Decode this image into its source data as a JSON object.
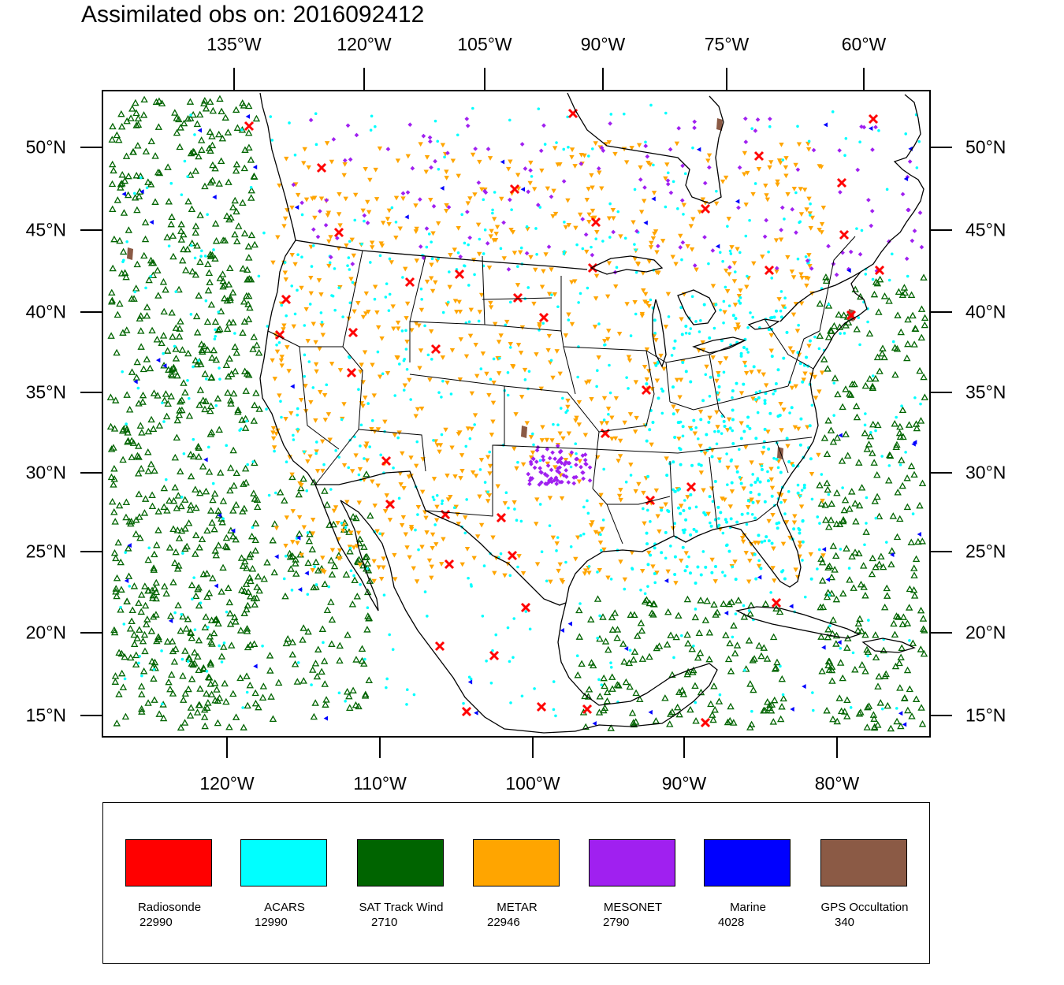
{
  "title": "Assimilated obs on: 2016092412",
  "map": {
    "lat_labels": [
      "50°N",
      "45°N",
      "40°N",
      "35°N",
      "30°N",
      "25°N",
      "20°N",
      "15°N"
    ],
    "top_lon_labels": [
      "135°W",
      "120°W",
      "105°W",
      "90°W",
      "75°W",
      "60°W"
    ],
    "bottom_lon_labels": [
      "120°W",
      "110°W",
      "100°W",
      "90°W",
      "80°W"
    ],
    "background": "#ffffff",
    "coast_color": "#000000"
  },
  "legend": [
    {
      "name": "Radiosonde",
      "count": "22990",
      "color": "#ff0000",
      "marker": "x-icon"
    },
    {
      "name": "ACARS",
      "count": "12990",
      "color": "#00ffff",
      "marker": "dot-icon"
    },
    {
      "name": "SAT Track Wind",
      "count": "2710",
      "color": "#006400",
      "marker": "triangle-up-icon"
    },
    {
      "name": "METAR",
      "count": "22946",
      "color": "#ffa500",
      "marker": "triangle-down-icon"
    },
    {
      "name": "MESONET",
      "count": "2790",
      "color": "#a020f0",
      "marker": "diamond-icon"
    },
    {
      "name": "Marine",
      "count": "4028",
      "color": "#0000ff",
      "marker": "triangle-left-icon"
    },
    {
      "name": "GPS Occultation",
      "count": "340",
      "color": "#8b5a45",
      "marker": "parallelogram-icon"
    }
  ]
}
